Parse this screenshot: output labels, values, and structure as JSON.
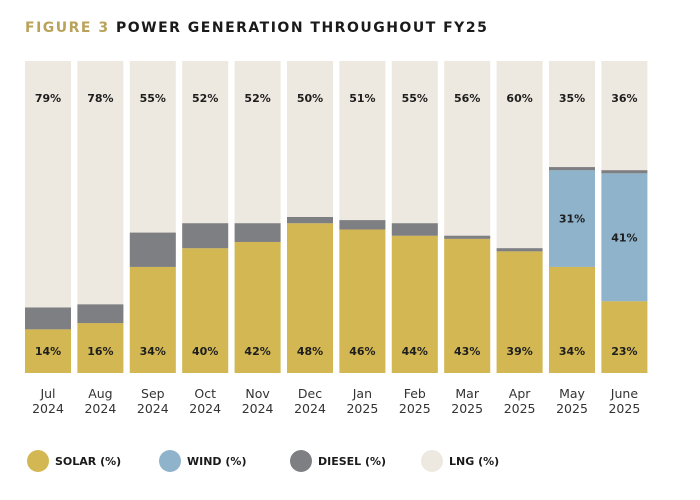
{
  "title": {
    "prefix": "FIGURE 3",
    "text": "POWER GENERATION THROUGHOUT FY25"
  },
  "colors": {
    "solar": "#D2B752",
    "wind": "#8FB3CB",
    "diesel": "#7E7F83",
    "lng": "#EEE9E0",
    "title_accent": "#B9A35A"
  },
  "chart_data": {
    "type": "bar",
    "stacked": true,
    "title": "FIGURE 3 POWER GENERATION THROUGHOUT FY25",
    "xlabel": "",
    "ylabel": "",
    "ylim": [
      0,
      100
    ],
    "grid": false,
    "legend_position": "bottom",
    "categories": [
      [
        "Jul",
        "2024"
      ],
      [
        "Aug",
        "2024"
      ],
      [
        "Sep",
        "2024"
      ],
      [
        "Oct",
        "2024"
      ],
      [
        "Nov",
        "2024"
      ],
      [
        "Dec",
        "2024"
      ],
      [
        "Jan",
        "2025"
      ],
      [
        "Feb",
        "2025"
      ],
      [
        "Mar",
        "2025"
      ],
      [
        "Apr",
        "2025"
      ],
      [
        "May",
        "2025"
      ],
      [
        "June",
        "2025"
      ]
    ],
    "series": [
      {
        "name": "SOLAR (%)",
        "key": "solar",
        "values": [
          14,
          16,
          34,
          40,
          42,
          48,
          46,
          44,
          43,
          39,
          34,
          23
        ],
        "labeled": true
      },
      {
        "name": "WIND (%)",
        "key": "wind",
        "values": [
          0,
          0,
          0,
          0,
          0,
          0,
          0,
          0,
          0,
          0,
          31,
          41
        ],
        "labeled": true
      },
      {
        "name": "DIESEL (%)",
        "key": "diesel",
        "values": [
          7,
          6,
          11,
          8,
          6,
          2,
          3,
          4,
          1,
          1,
          1,
          1
        ],
        "labeled": false
      },
      {
        "name": "LNG (%)",
        "key": "lng",
        "values": [
          79,
          78,
          55,
          52,
          52,
          50,
          51,
          55,
          56,
          60,
          35,
          36
        ],
        "labeled": true
      }
    ],
    "value_suffix": "%"
  }
}
